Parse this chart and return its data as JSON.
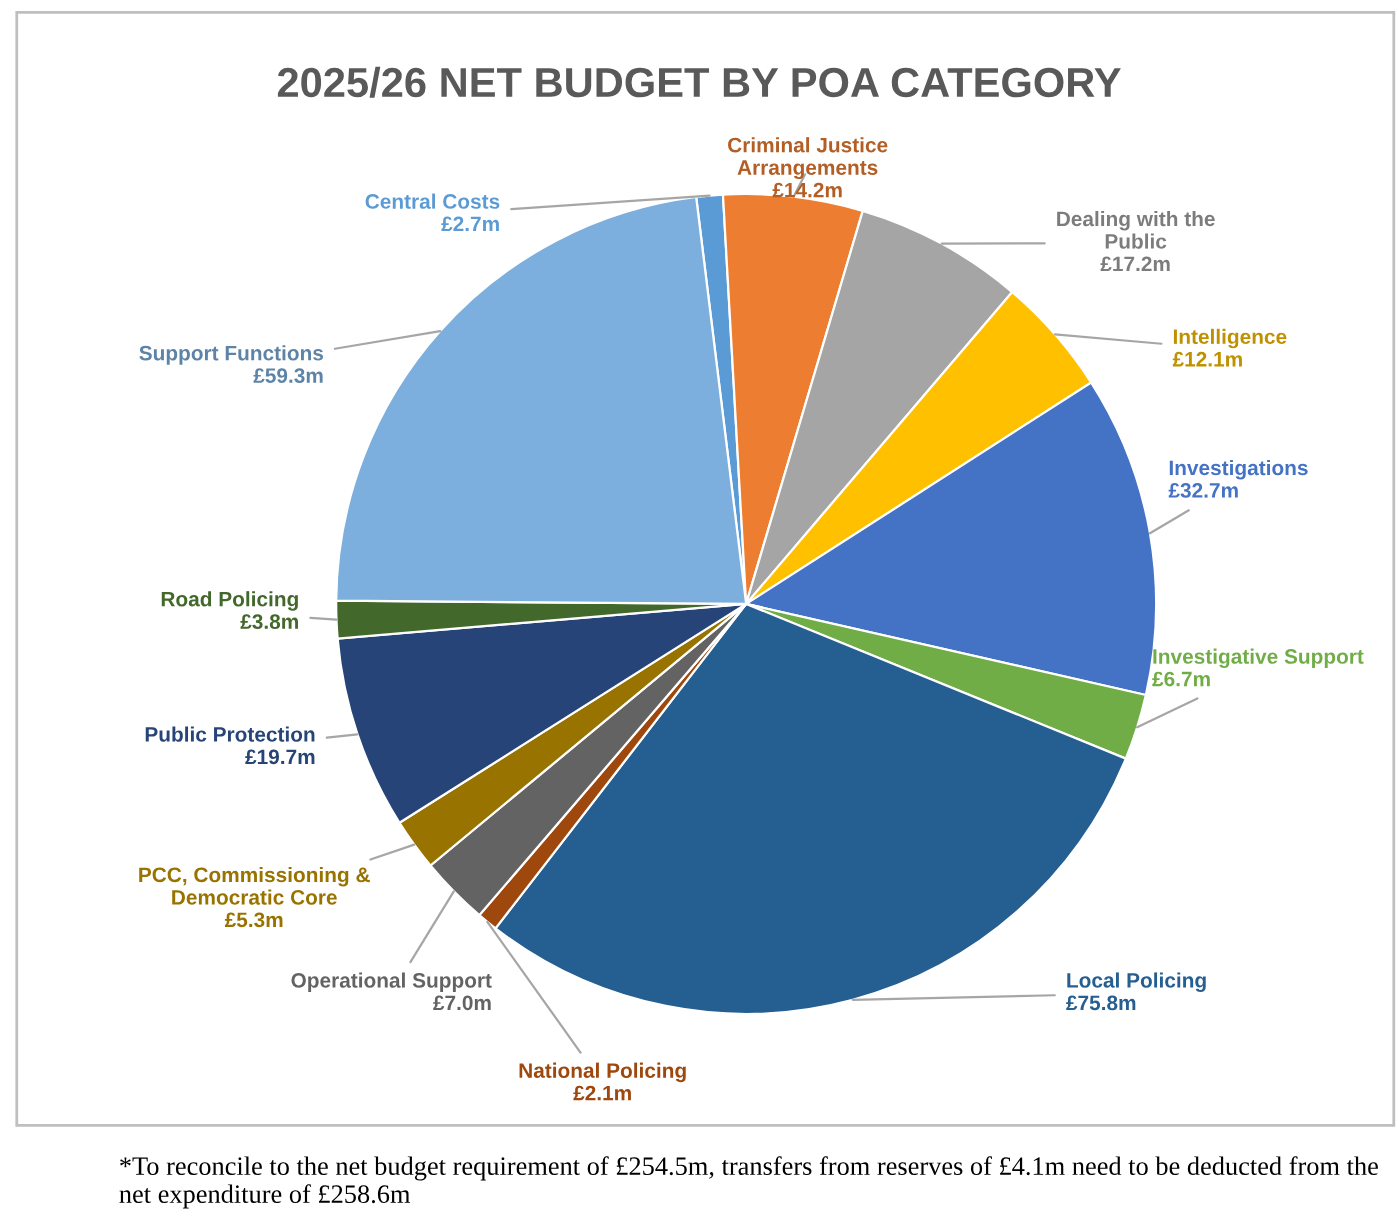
{
  "chart_data": {
    "type": "pie",
    "title": "2025/26 NET BUDGET BY POA CATEGORY",
    "categories": [
      "Central Costs",
      "Criminal Justice Arrangements",
      "Dealing with the Public",
      "Intelligence",
      "Investigations",
      "Investigative Support",
      "Local Policing",
      "National Policing",
      "Operational Support",
      "PCC, Commissioning & Democratic Core",
      "Public Protection",
      "Road Policing",
      "Support Functions"
    ],
    "values": [
      2.7,
      14.2,
      17.2,
      12.1,
      32.7,
      6.7,
      75.8,
      2.1,
      7.0,
      5.3,
      19.7,
      3.8,
      59.3
    ],
    "value_labels": [
      "£2.7m",
      "£14.2m",
      "£17.2m",
      "£12.1m",
      "£32.7m",
      "£6.7m",
      "£75.8m",
      "£2.1m",
      "£7.0m",
      "£5.3m",
      "£19.7m",
      "£3.8m",
      "£59.3m"
    ],
    "colors": [
      "#5b9bd5",
      "#ed7d31",
      "#a5a5a5",
      "#ffc000",
      "#4472c4",
      "#70ad47",
      "#255e91",
      "#9e480e",
      "#636363",
      "#997300",
      "#264478",
      "#43682b",
      "#7cafdd"
    ],
    "annotations": [
      "*To reconcile to the net budget requirement of £254.5m, transfers from reserves of £4.1m need to be deducted from the net expenditure of £258.6m"
    ]
  }
}
